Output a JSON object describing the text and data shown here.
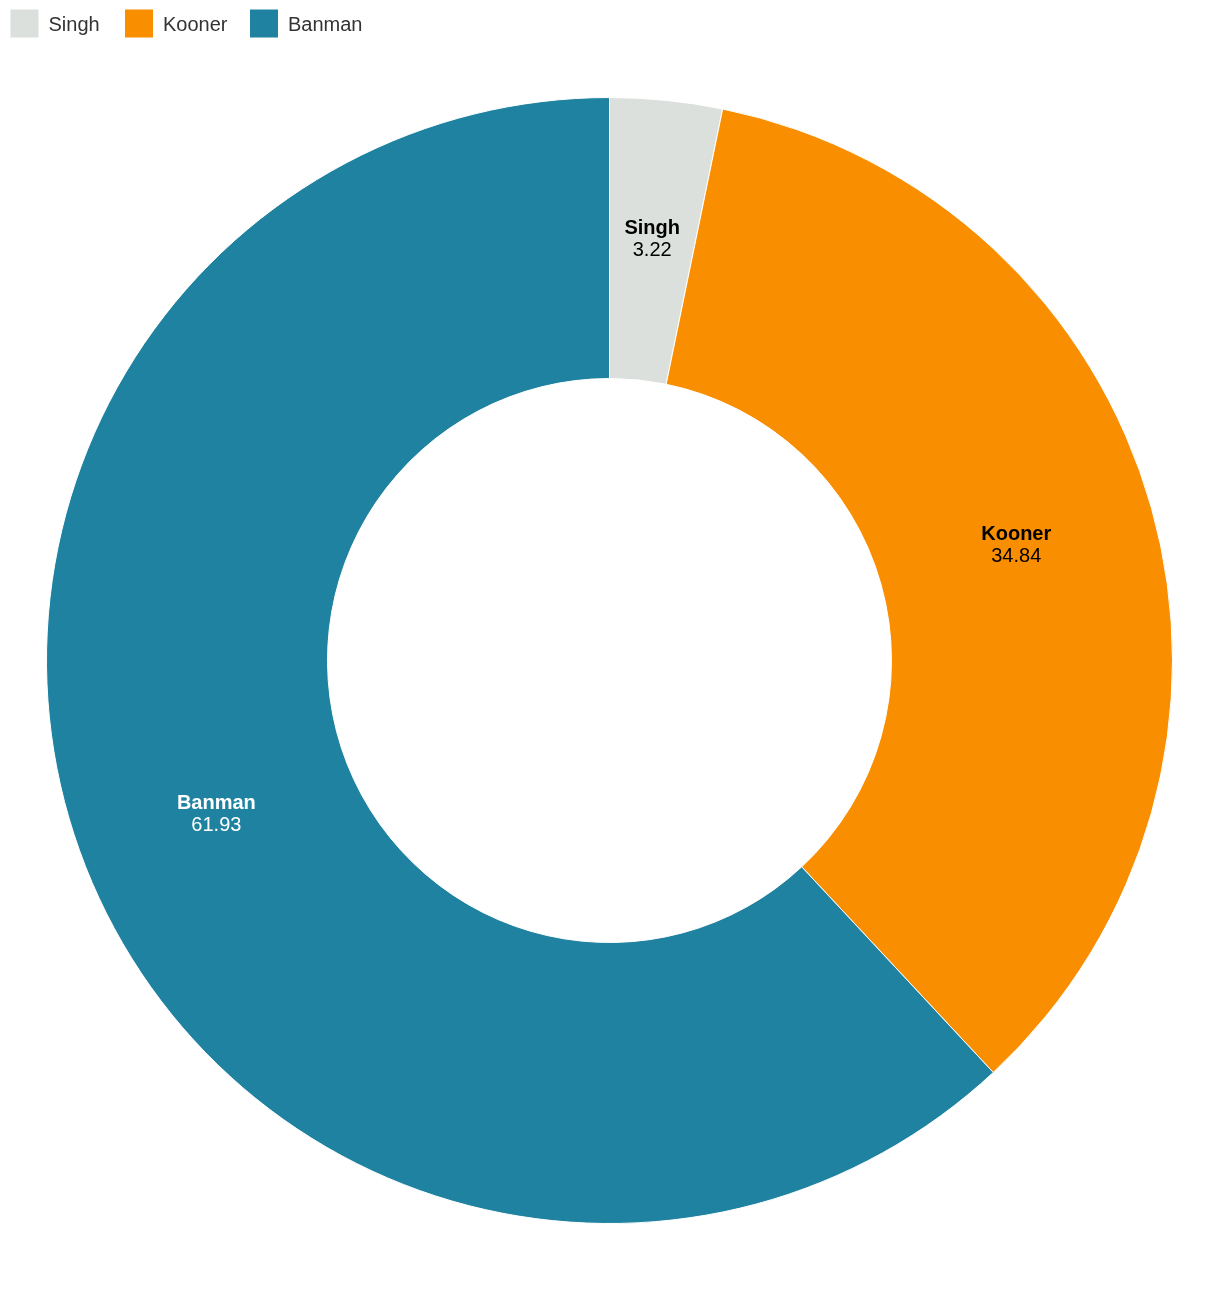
{
  "chart_data": {
    "type": "donut",
    "categories": [
      "Singh",
      "Kooner",
      "Banman"
    ],
    "values": [
      3.22,
      34.84,
      61.93
    ],
    "colors": [
      "#dce0dc",
      "#f98e00",
      "#1f82a0"
    ],
    "data_labels": true,
    "legend": "top left"
  }
}
